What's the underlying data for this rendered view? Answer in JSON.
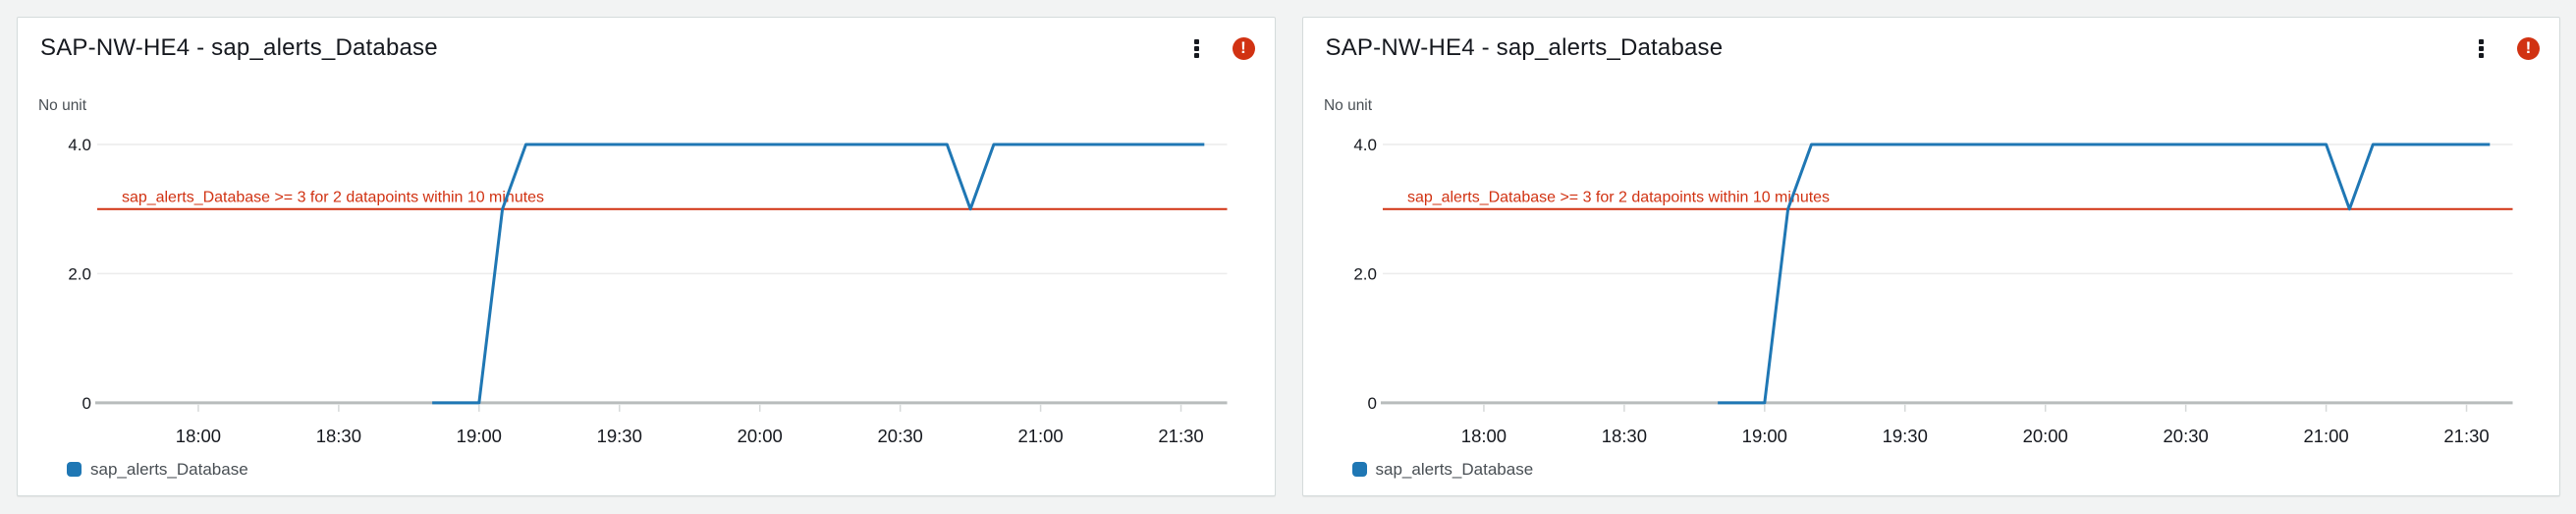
{
  "page": {
    "background_color": "#f2f3f3"
  },
  "colors": {
    "series_blue": "#1f77b4",
    "alarm_red": "#d13212",
    "text_dark": "#16191f",
    "text_gray": "#494f54"
  },
  "widgets": [
    {
      "title": "SAP-NW-HE4 - sap_alerts_Database",
      "alarm_glyph": "!",
      "legend": [
        {
          "label": "sap_alerts_Database",
          "color": "#1f77b4"
        }
      ],
      "chart_data": {
        "type": "line",
        "title": "SAP-NW-HE4 - sap_alerts_Database",
        "ylabel": "No unit",
        "ylim": [
          0,
          4.4
        ],
        "yticks": [
          {
            "value": 4,
            "label": "4.0"
          },
          {
            "value": 2,
            "label": "2.0"
          },
          {
            "value": 0,
            "label": "0"
          }
        ],
        "xticks": [
          "18:00",
          "18:30",
          "19:00",
          "19:30",
          "20:00",
          "20:30",
          "21:00",
          "21:30"
        ],
        "x_window": [
          "17:38",
          "21:40"
        ],
        "grid": "horizontal-only",
        "legend_position": "bottom-left",
        "threshold": {
          "value": 3,
          "label": "sap_alerts_Database >= 3 for 2 datapoints within 10 minutes",
          "color": "#d13212"
        },
        "series": [
          {
            "name": "sap_alerts_Database",
            "color": "#1f77b4",
            "points": [
              [
                "18:50",
                0
              ],
              [
                "18:55",
                0
              ],
              [
                "19:00",
                0
              ],
              [
                "19:05",
                3
              ],
              [
                "19:10",
                4
              ],
              [
                "20:40",
                4
              ],
              [
                "20:45",
                3
              ],
              [
                "20:50",
                4
              ],
              [
                "21:35",
                4
              ]
            ]
          }
        ]
      }
    },
    {
      "title": "SAP-NW-HE4 - sap_alerts_Database",
      "alarm_glyph": "!",
      "legend": [
        {
          "label": "sap_alerts_Database",
          "color": "#1f77b4"
        }
      ],
      "chart_data": {
        "type": "line",
        "title": "SAP-NW-HE4 - sap_alerts_Database",
        "ylabel": "No unit",
        "ylim": [
          0,
          4.4
        ],
        "yticks": [
          {
            "value": 4,
            "label": "4.0"
          },
          {
            "value": 2,
            "label": "2.0"
          },
          {
            "value": 0,
            "label": "0"
          }
        ],
        "xticks": [
          "18:00",
          "18:30",
          "19:00",
          "19:30",
          "20:00",
          "20:30",
          "21:00",
          "21:30"
        ],
        "x_window": [
          "17:38",
          "21:40"
        ],
        "grid": "horizontal-only",
        "legend_position": "bottom-left",
        "threshold": {
          "value": 3,
          "label": "sap_alerts_Database >= 3 for 2 datapoints within 10 minutes",
          "color": "#d13212"
        },
        "series": [
          {
            "name": "sap_alerts_Database",
            "color": "#1f77b4",
            "points": [
              [
                "18:50",
                0
              ],
              [
                "18:55",
                0
              ],
              [
                "19:00",
                0
              ],
              [
                "19:05",
                3
              ],
              [
                "19:10",
                4
              ],
              [
                "21:00",
                4
              ],
              [
                "21:05",
                3
              ],
              [
                "21:10",
                4
              ],
              [
                "21:35",
                4
              ]
            ]
          }
        ]
      }
    }
  ]
}
